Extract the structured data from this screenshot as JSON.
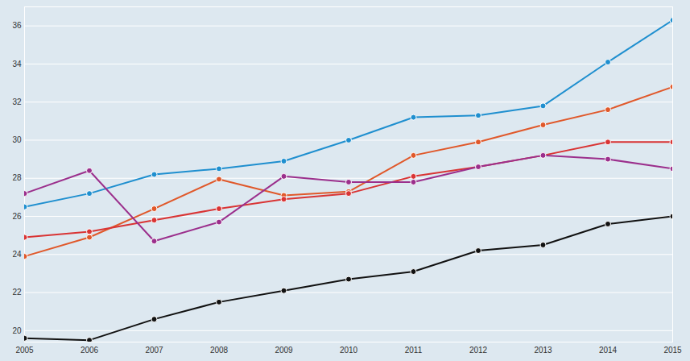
{
  "chart_data": {
    "type": "line",
    "x": [
      2005,
      2006,
      2007,
      2008,
      2009,
      2010,
      2011,
      2012,
      2013,
      2014,
      2015
    ],
    "xlim": [
      2005,
      2015
    ],
    "xticks": [
      2005,
      2006,
      2007,
      2008,
      2009,
      2010,
      2011,
      2012,
      2013,
      2014,
      2015
    ],
    "ylim": [
      19.4,
      37
    ],
    "yticks": [
      20,
      22,
      24,
      26,
      28,
      30,
      32,
      34,
      36
    ],
    "grid": true,
    "marker": "circle",
    "series": [
      {
        "color": "#1f8fcf",
        "values": [
          26.5,
          27.2,
          28.2,
          28.5,
          28.9,
          30.0,
          31.2,
          31.3,
          31.8,
          34.1,
          36.3
        ]
      },
      {
        "color": "#e0582a",
        "values": [
          23.9,
          24.9,
          26.4,
          27.95,
          27.1,
          27.3,
          29.2,
          29.9,
          30.8,
          31.6,
          32.8
        ]
      },
      {
        "color": "#d93434",
        "values": [
          24.9,
          25.2,
          25.8,
          26.4,
          26.9,
          27.2,
          28.1,
          28.6,
          29.2,
          29.9,
          29.9
        ]
      },
      {
        "color": "#9b2f8c",
        "values": [
          27.2,
          28.4,
          24.7,
          25.7,
          28.1,
          27.8,
          27.8,
          28.6,
          29.2,
          29.0,
          28.5
        ]
      },
      {
        "color": "#111111",
        "values": [
          19.6,
          19.5,
          20.6,
          21.5,
          22.1,
          22.7,
          23.1,
          24.2,
          24.5,
          25.6,
          26.0
        ]
      }
    ]
  }
}
